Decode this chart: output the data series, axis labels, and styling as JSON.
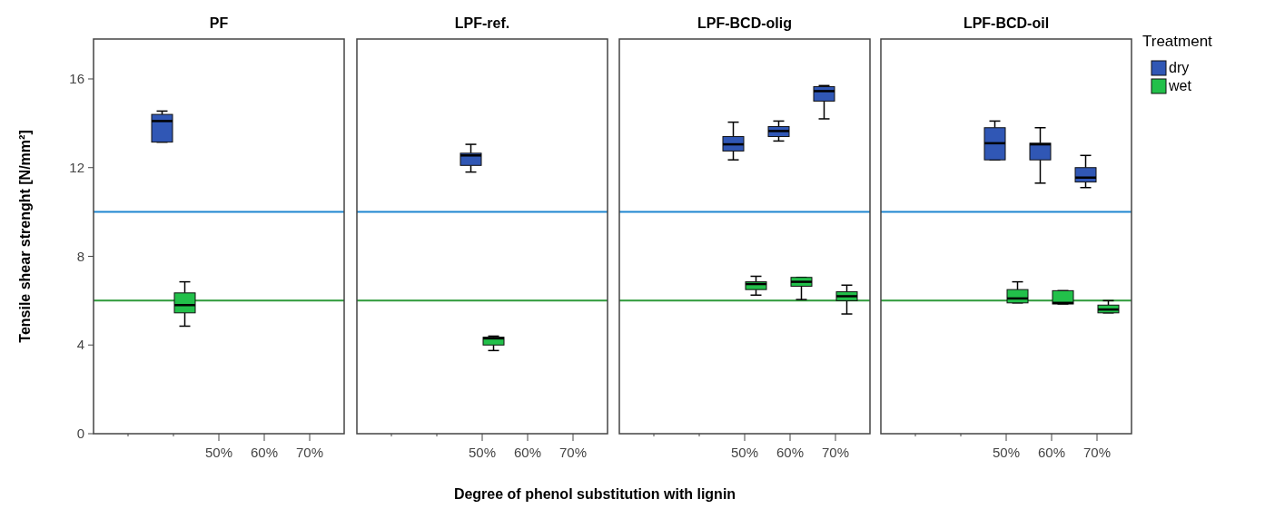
{
  "chart_data": [
    {
      "type": "box",
      "title": "PF",
      "ylabel": "Tensile shear strenght [N/mm²]",
      "categories": [
        null,
        null,
        "50%",
        "60%",
        "70%"
      ],
      "ylim": [
        0,
        17.8
      ],
      "yticks": [
        0,
        4,
        8,
        12,
        16
      ],
      "grid": false,
      "legend": false,
      "ref_lines": [
        {
          "axis": "y",
          "value": 10,
          "color": "#1f86d0"
        },
        {
          "axis": "y",
          "value": 6,
          "color": "#2e9a3a"
        }
      ],
      "series": [
        {
          "color": "#3057b5",
          "boxes": [
            null,
            {
              "low": 13.15,
              "q1": 13.15,
              "median": 14.1,
              "q3": 14.4,
              "high": 14.55
            },
            null,
            null,
            null
          ]
        },
        {
          "color": "#22c04a",
          "boxes": [
            null,
            {
              "low": 4.85,
              "q1": 5.45,
              "median": 5.8,
              "q3": 6.35,
              "high": 6.85
            },
            null,
            null,
            null
          ]
        }
      ]
    },
    {
      "type": "box",
      "title": "LPF-ref.",
      "xlabel": "Degree of phenol substitution with lignin",
      "categories": [
        null,
        null,
        "50%",
        "60%",
        "70%"
      ],
      "ylim": [
        0,
        17.8
      ],
      "yticks": [
        0,
        4,
        8,
        12,
        16
      ],
      "tick_labels": "x",
      "grid": false,
      "legend": false,
      "ref_lines": [
        {
          "axis": "y",
          "value": 10,
          "color": "#1f86d0"
        },
        {
          "axis": "y",
          "value": 6,
          "color": "#2e9a3a"
        }
      ],
      "series": [
        {
          "color": "#3057b5",
          "boxes": [
            null,
            null,
            {
              "low": 11.8,
              "q1": 12.1,
              "median": 12.55,
              "q3": 12.65,
              "high": 13.05
            },
            null,
            null
          ]
        },
        {
          "color": "#22c04a",
          "boxes": [
            null,
            null,
            {
              "low": 3.75,
              "q1": 4.0,
              "median": 4.3,
              "q3": 4.35,
              "high": 4.4
            },
            null,
            null
          ]
        }
      ]
    },
    {
      "type": "box",
      "title": "LPF-BCD-olig",
      "categories": [
        null,
        null,
        "50%",
        "60%",
        "70%"
      ],
      "ylim": [
        0,
        17.8
      ],
      "yticks": [
        0,
        4,
        8,
        12,
        16
      ],
      "tick_labels": "x",
      "grid": false,
      "legend": false,
      "ref_lines": [
        {
          "axis": "y",
          "value": 10,
          "color": "#1f86d0"
        },
        {
          "axis": "y",
          "value": 6,
          "color": "#2e9a3a"
        }
      ],
      "series": [
        {
          "color": "#3057b5",
          "boxes": [
            null,
            null,
            {
              "low": 12.35,
              "q1": 12.75,
              "median": 13.05,
              "q3": 13.4,
              "high": 14.05
            },
            {
              "low": 13.2,
              "q1": 13.4,
              "median": 13.65,
              "q3": 13.85,
              "high": 14.1
            },
            {
              "low": 14.2,
              "q1": 15.0,
              "median": 15.45,
              "q3": 15.65,
              "high": 15.7
            }
          ]
        },
        {
          "color": "#22c04a",
          "boxes": [
            null,
            null,
            {
              "low": 6.25,
              "q1": 6.5,
              "median": 6.75,
              "q3": 6.85,
              "high": 7.1
            },
            {
              "low": 6.05,
              "q1": 6.65,
              "median": 6.85,
              "q3": 7.05,
              "high": 7.05
            },
            {
              "low": 5.4,
              "q1": 6.0,
              "median": 6.2,
              "q3": 6.4,
              "high": 6.7
            }
          ]
        }
      ]
    },
    {
      "type": "box",
      "title": "LPF-BCD-oil",
      "categories": [
        null,
        null,
        "50%",
        "60%",
        "70%"
      ],
      "ylim": [
        0,
        17.8
      ],
      "yticks": [
        0,
        4,
        8,
        12,
        16
      ],
      "tick_labels": "x",
      "grid": false,
      "legend": "right",
      "legend_title": "Treatment",
      "ref_lines": [
        {
          "axis": "y",
          "value": 10,
          "color": "#1f86d0"
        },
        {
          "axis": "y",
          "value": 6,
          "color": "#2e9a3a"
        }
      ],
      "series": [
        {
          "name": "dry",
          "color": "#3057b5",
          "boxes": [
            null,
            null,
            {
              "low": 12.35,
              "q1": 12.35,
              "median": 13.1,
              "q3": 13.8,
              "high": 14.1
            },
            {
              "low": 11.3,
              "q1": 12.35,
              "median": 13.05,
              "q3": 13.1,
              "high": 13.8
            },
            {
              "low": 11.1,
              "q1": 11.35,
              "median": 11.55,
              "q3": 12.0,
              "high": 12.55
            }
          ]
        },
        {
          "name": "wet",
          "color": "#22c04a",
          "boxes": [
            null,
            null,
            {
              "low": 5.9,
              "q1": 5.9,
              "median": 6.1,
              "q3": 6.5,
              "high": 6.85
            },
            {
              "low": 5.85,
              "q1": 5.85,
              "median": 5.9,
              "q3": 6.45,
              "high": 6.45
            },
            {
              "low": 5.45,
              "q1": 5.45,
              "median": 5.6,
              "q3": 5.8,
              "high": 6.0
            }
          ]
        }
      ]
    }
  ]
}
